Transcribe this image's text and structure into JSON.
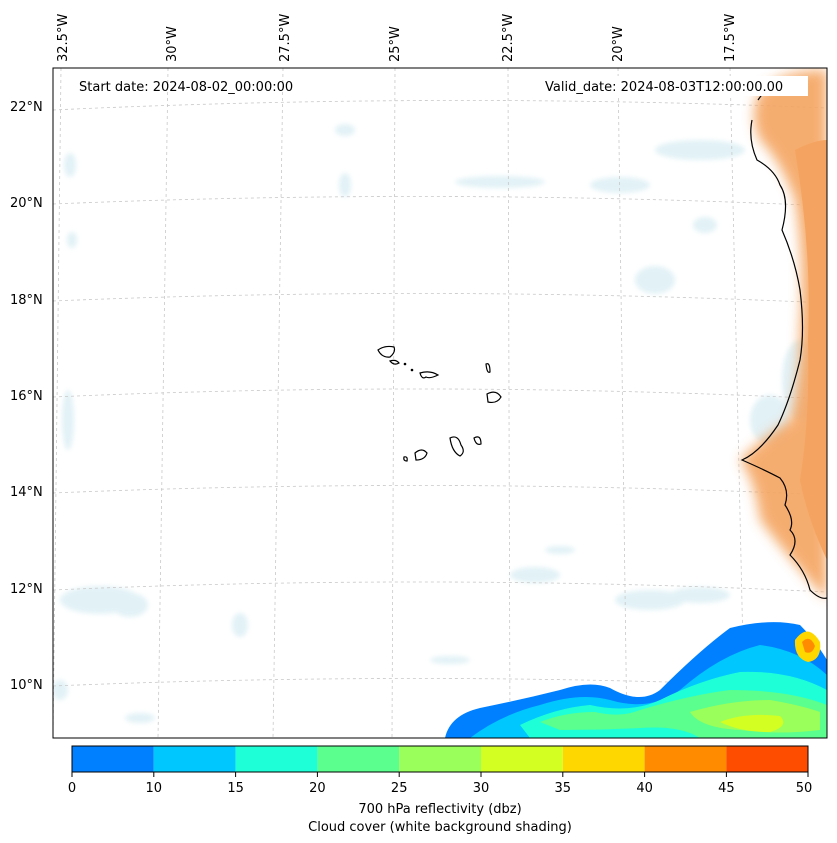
{
  "map": {
    "start_date_label": "Start date: 2024-08-02_00:00:00",
    "valid_date_label": "Valid_date: 2024-08-03T12:00:00.00",
    "lon_labels": [
      "32.5°W",
      "30°W",
      "27.5°W",
      "25°W",
      "22.5°W",
      "20°W",
      "17.5°W"
    ],
    "lat_labels": [
      "22°N",
      "20°N",
      "18°N",
      "16°N",
      "14°N",
      "12°N",
      "10°N"
    ],
    "gridlines": "dashed",
    "land_color": "#f4a460"
  },
  "colorbar": {
    "ticks": [
      "0",
      "10",
      "15",
      "20",
      "25",
      "30",
      "35",
      "40",
      "45",
      "50"
    ],
    "colors": [
      "#0080ff",
      "#00c8ff",
      "#1effd8",
      "#5aff8e",
      "#9aff5a",
      "#d4ff22",
      "#ffd700",
      "#ff8c00",
      "#ff4d00"
    ],
    "label_line1": "700 hPa reflectivity (dbz)",
    "label_line2": "Cloud cover (white background shading)"
  }
}
